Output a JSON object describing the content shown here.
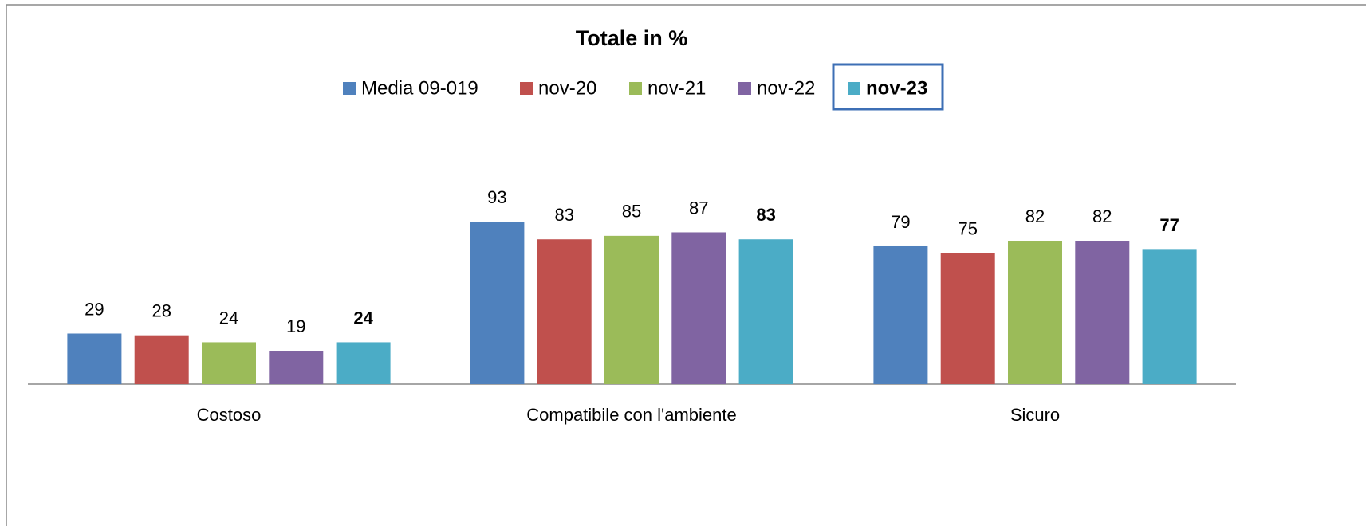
{
  "chart_data": {
    "type": "bar",
    "title": "Totale in %",
    "categories": [
      "Costoso",
      "Compatibile con l'ambiente",
      "Sicuro"
    ],
    "series": [
      {
        "name": "Media 09-019",
        "color": "#4f81bd",
        "values": [
          29,
          93,
          79
        ]
      },
      {
        "name": "nov-20",
        "color": "#c0504d",
        "values": [
          28,
          83,
          75
        ]
      },
      {
        "name": "nov-21",
        "color": "#9bbb59",
        "values": [
          24,
          85,
          82
        ]
      },
      {
        "name": "nov-22",
        "color": "#8064a2",
        "values": [
          19,
          87,
          82
        ]
      },
      {
        "name": "nov-23",
        "color": "#4bacc6",
        "values": [
          24,
          83,
          77
        ]
      }
    ],
    "legend": "top"
  }
}
